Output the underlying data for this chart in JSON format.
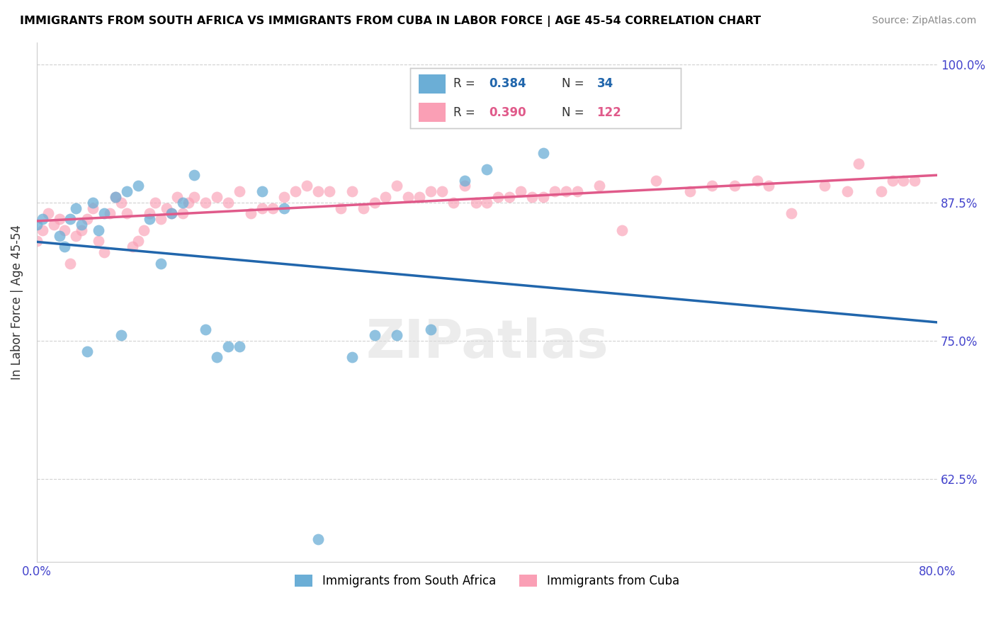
{
  "title": "IMMIGRANTS FROM SOUTH AFRICA VS IMMIGRANTS FROM CUBA IN LABOR FORCE | AGE 45-54 CORRELATION CHART",
  "source": "Source: ZipAtlas.com",
  "ylabel_label": "In Labor Force | Age 45-54",
  "legend_blue_r": "0.384",
  "legend_blue_n": "34",
  "legend_pink_r": "0.390",
  "legend_pink_n": "122",
  "legend_label_blue": "Immigrants from South Africa",
  "legend_label_pink": "Immigrants from Cuba",
  "watermark": "ZIPatlas",
  "blue_color": "#6baed6",
  "pink_color": "#fa9fb5",
  "blue_line_color": "#2166ac",
  "pink_line_color": "#e05a8a",
  "blue_scatter_x": [
    0.0,
    0.5,
    2.0,
    2.5,
    3.0,
    3.5,
    4.0,
    4.5,
    5.0,
    5.5,
    6.0,
    7.0,
    7.5,
    8.0,
    9.0,
    10.0,
    11.0,
    12.0,
    13.0,
    14.0,
    15.0,
    16.0,
    17.0,
    18.0,
    20.0,
    22.0,
    25.0,
    28.0,
    30.0,
    32.0,
    35.0,
    38.0,
    40.0,
    45.0
  ],
  "blue_scatter_y": [
    85.5,
    86.0,
    84.5,
    83.5,
    86.0,
    87.0,
    85.5,
    74.0,
    87.5,
    85.0,
    86.5,
    88.0,
    75.5,
    88.5,
    89.0,
    86.0,
    82.0,
    86.5,
    87.5,
    90.0,
    76.0,
    73.5,
    74.5,
    74.5,
    88.5,
    87.0,
    57.0,
    73.5,
    75.5,
    75.5,
    76.0,
    89.5,
    90.5,
    92.0
  ],
  "pink_scatter_x": [
    0.0,
    0.5,
    1.0,
    1.5,
    2.0,
    2.5,
    3.0,
    3.5,
    4.0,
    4.5,
    5.0,
    5.5,
    6.0,
    6.5,
    7.0,
    7.5,
    8.0,
    8.5,
    9.0,
    9.5,
    10.0,
    10.5,
    11.0,
    11.5,
    12.0,
    12.5,
    13.0,
    13.5,
    14.0,
    15.0,
    16.0,
    17.0,
    18.0,
    19.0,
    20.0,
    21.0,
    22.0,
    23.0,
    24.0,
    25.0,
    26.0,
    27.0,
    28.0,
    29.0,
    30.0,
    31.0,
    32.0,
    33.0,
    34.0,
    35.0,
    36.0,
    37.0,
    38.0,
    39.0,
    40.0,
    41.0,
    42.0,
    43.0,
    44.0,
    45.0,
    46.0,
    47.0,
    48.0,
    50.0,
    52.0,
    55.0,
    58.0,
    60.0,
    62.0,
    64.0,
    65.0,
    67.0,
    70.0,
    72.0,
    73.0,
    75.0,
    76.0,
    77.0,
    78.0
  ],
  "pink_scatter_y": [
    84.0,
    85.0,
    86.5,
    85.5,
    86.0,
    85.0,
    82.0,
    84.5,
    85.0,
    86.0,
    87.0,
    84.0,
    83.0,
    86.5,
    88.0,
    87.5,
    86.5,
    83.5,
    84.0,
    85.0,
    86.5,
    87.5,
    86.0,
    87.0,
    86.5,
    88.0,
    86.5,
    87.5,
    88.0,
    87.5,
    88.0,
    87.5,
    88.5,
    86.5,
    87.0,
    87.0,
    88.0,
    88.5,
    89.0,
    88.5,
    88.5,
    87.0,
    88.5,
    87.0,
    87.5,
    88.0,
    89.0,
    88.0,
    88.0,
    88.5,
    88.5,
    87.5,
    89.0,
    87.5,
    87.5,
    88.0,
    88.0,
    88.5,
    88.0,
    88.0,
    88.5,
    88.5,
    88.5,
    89.0,
    85.0,
    89.5,
    88.5,
    89.0,
    89.0,
    89.5,
    89.0,
    86.5,
    89.0,
    88.5,
    91.0,
    88.5,
    89.5,
    89.5,
    89.5
  ],
  "xlim": [
    0,
    80
  ],
  "ylim": [
    55,
    102
  ],
  "yticks": [
    62.5,
    75.0,
    87.5,
    100.0
  ],
  "background_color": "#ffffff",
  "grid_color": "#cccccc",
  "title_color": "#000000",
  "axis_color": "#4444cc"
}
